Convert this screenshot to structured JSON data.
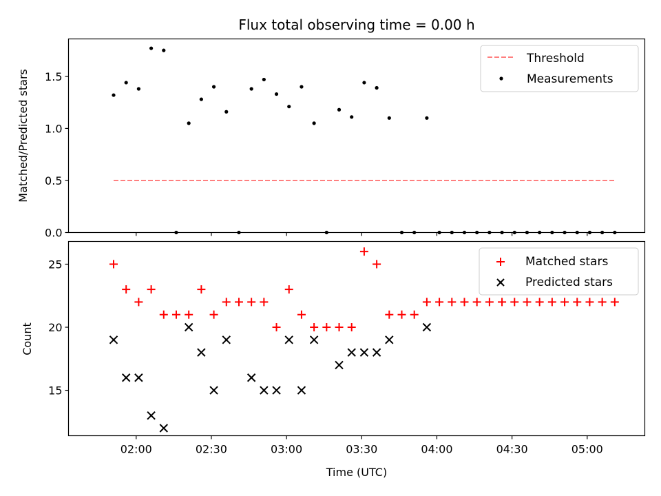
{
  "chart_data": [
    {
      "type": "scatter",
      "title": "Flux total observing time = 0.00 h",
      "xlabel": "",
      "ylabel": "Matched/Predicted stars",
      "ylim": [
        0,
        1.86
      ],
      "yticks": [
        0.0,
        0.5,
        1.0,
        1.5
      ],
      "ytick_labels": [
        "0.0",
        "0.5",
        "1.0",
        "1.5"
      ],
      "grid": false,
      "legend_position": "top-right",
      "legend": [
        "Threshold",
        "Measurements"
      ],
      "threshold": {
        "name": "Threshold",
        "value": 0.5,
        "x_range": [
          "01:51",
          "05:11"
        ],
        "color": "#ff7f7f"
      },
      "series": [
        {
          "name": "Measurements",
          "x": [
            "01:51",
            "01:56",
            "02:01",
            "02:06",
            "02:11",
            "02:16",
            "02:21",
            "02:26",
            "02:31",
            "02:36",
            "02:41",
            "02:46",
            "02:51",
            "02:56",
            "03:01",
            "03:06",
            "03:11",
            "03:16",
            "03:21",
            "03:26",
            "03:31",
            "03:36",
            "03:41",
            "03:46",
            "03:51",
            "03:56",
            "04:01",
            "04:06",
            "04:11",
            "04:16",
            "04:21",
            "04:26",
            "04:31",
            "04:36",
            "04:41",
            "04:46",
            "04:51",
            "04:56",
            "05:01",
            "05:06",
            "05:11"
          ],
          "values": [
            1.32,
            1.44,
            1.38,
            1.77,
            1.75,
            0.0,
            1.05,
            1.28,
            1.4,
            1.16,
            0.0,
            1.38,
            1.47,
            1.33,
            1.21,
            1.4,
            1.05,
            0.0,
            1.18,
            1.11,
            1.44,
            1.39,
            1.1,
            0.0,
            0.0,
            1.1,
            0.0,
            0.0,
            0.0,
            0.0,
            0.0,
            0.0,
            0.0,
            0.0,
            0.0,
            0.0,
            0.0,
            0.0,
            0.0,
            0.0,
            0.0
          ]
        }
      ]
    },
    {
      "type": "scatter",
      "title": "",
      "xlabel": "Time (UTC)",
      "ylabel": "Count",
      "xlim": [
        "01:33",
        "05:23"
      ],
      "xticks": [
        "02:00",
        "02:30",
        "03:00",
        "03:30",
        "04:00",
        "04:30",
        "05:00"
      ],
      "ylim": [
        11.4,
        26.8
      ],
      "yticks": [
        15,
        20,
        25
      ],
      "ytick_labels": [
        "15",
        "20",
        "25"
      ],
      "grid": false,
      "legend_position": "top-right",
      "legend": [
        "Matched stars",
        "Predicted stars"
      ],
      "series": [
        {
          "name": "Matched stars",
          "color": "#ff0000",
          "x": [
            "01:51",
            "01:56",
            "02:01",
            "02:06",
            "02:11",
            "02:16",
            "02:21",
            "02:26",
            "02:31",
            "02:36",
            "02:41",
            "02:46",
            "02:51",
            "02:56",
            "03:01",
            "03:06",
            "03:11",
            "03:16",
            "03:21",
            "03:26",
            "03:31",
            "03:36",
            "03:41",
            "03:46",
            "03:51",
            "03:56",
            "04:01",
            "04:06",
            "04:11",
            "04:16",
            "04:21",
            "04:26",
            "04:31",
            "04:36",
            "04:41",
            "04:46",
            "04:51",
            "04:56",
            "05:01",
            "05:06",
            "05:11"
          ],
          "values": [
            25,
            23,
            22,
            23,
            21,
            21,
            21,
            23,
            21,
            22,
            22,
            22,
            22,
            20,
            23,
            21,
            20,
            20,
            20,
            20,
            26,
            25,
            21,
            21,
            21,
            22,
            22,
            22,
            22,
            22,
            22,
            22,
            22,
            22,
            22,
            22,
            22,
            22,
            22,
            22,
            22
          ]
        },
        {
          "name": "Predicted stars",
          "color": "#000000",
          "x": [
            "01:51",
            "01:56",
            "02:01",
            "02:06",
            "02:11",
            "02:21",
            "02:26",
            "02:31",
            "02:36",
            "02:46",
            "02:51",
            "02:56",
            "03:01",
            "03:06",
            "03:11",
            "03:21",
            "03:26",
            "03:31",
            "03:36",
            "03:41",
            "03:56"
          ],
          "values": [
            19,
            16,
            16,
            13,
            12,
            20,
            18,
            15,
            19,
            16,
            15,
            15,
            19,
            15,
            19,
            17,
            18,
            18,
            18,
            19,
            20
          ]
        }
      ]
    }
  ]
}
